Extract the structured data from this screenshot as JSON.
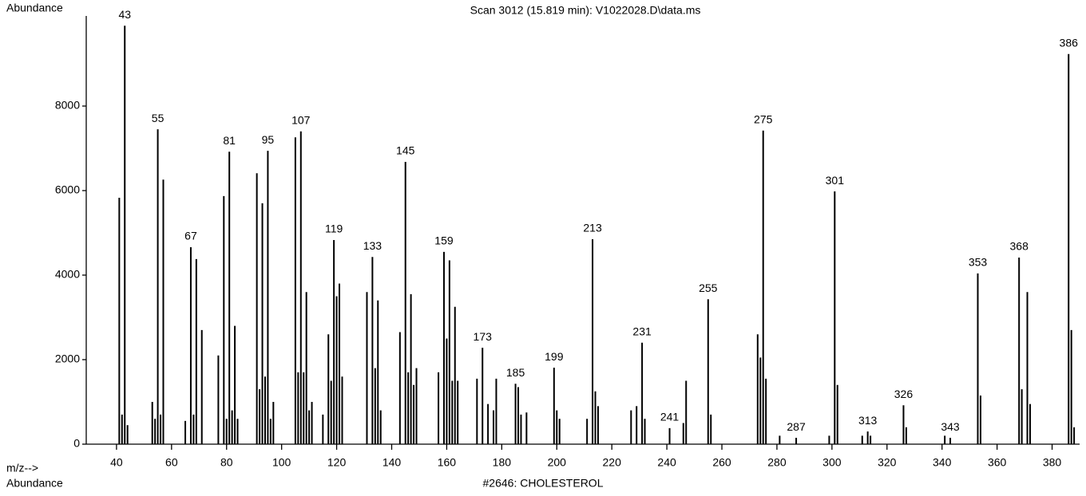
{
  "chart_data": {
    "type": "bar",
    "title": "Scan 3012 (15.819 min): V1022028.D\\data.ms",
    "y_label": "Abundance",
    "x_label": "m/z-->",
    "footer_label": "Abundance",
    "subtitle": "#2646: CHOLESTEROL",
    "color": "#000000",
    "xlim": [
      29,
      390
    ],
    "ylim": [
      0,
      10000
    ],
    "xticks": [
      40,
      60,
      80,
      100,
      120,
      140,
      160,
      180,
      200,
      220,
      240,
      260,
      280,
      300,
      320,
      340,
      360,
      380
    ],
    "yticks": [
      0,
      2000,
      4000,
      6000,
      8000
    ],
    "x": [
      41,
      42,
      43,
      44,
      53,
      54,
      55,
      56,
      57,
      65,
      67,
      68,
      69,
      71,
      77,
      79,
      80,
      81,
      82,
      83,
      84,
      91,
      92,
      93,
      94,
      95,
      96,
      97,
      105,
      106,
      107,
      108,
      109,
      110,
      111,
      115,
      117,
      118,
      119,
      120,
      121,
      122,
      131,
      133,
      134,
      135,
      136,
      143,
      145,
      146,
      147,
      148,
      149,
      157,
      159,
      160,
      161,
      162,
      163,
      164,
      171,
      173,
      175,
      177,
      178,
      185,
      186,
      187,
      189,
      199,
      200,
      201,
      211,
      213,
      214,
      215,
      227,
      229,
      231,
      232,
      241,
      246,
      247,
      255,
      256,
      273,
      274,
      275,
      276,
      281,
      287,
      299,
      301,
      302,
      311,
      313,
      314,
      326,
      327,
      341,
      343,
      353,
      354,
      368,
      369,
      371,
      372,
      386,
      387,
      388
    ],
    "values": [
      5830,
      700,
      9900,
      450,
      1000,
      600,
      7450,
      700,
      6260,
      550,
      4660,
      700,
      4380,
      2700,
      2100,
      5870,
      600,
      6920,
      800,
      2800,
      600,
      6410,
      1300,
      5700,
      1600,
      6940,
      600,
      1000,
      7260,
      1700,
      7400,
      1700,
      3600,
      800,
      1000,
      700,
      2600,
      1500,
      4830,
      3500,
      3800,
      1600,
      3600,
      4430,
      1800,
      3400,
      800,
      2650,
      6680,
      1700,
      3550,
      1400,
      1800,
      1700,
      4550,
      2500,
      4350,
      1500,
      3250,
      1500,
      1550,
      2280,
      950,
      800,
      1550,
      1430,
      1350,
      700,
      750,
      1810,
      800,
      600,
      600,
      4850,
      1250,
      900,
      800,
      900,
      2400,
      600,
      380,
      500,
      1500,
      3430,
      700,
      2600,
      2050,
      7420,
      1550,
      200,
      150,
      200,
      5980,
      1400,
      200,
      300,
      200,
      920,
      400,
      200,
      150,
      4040,
      1150,
      4415,
      1300,
      3600,
      950,
      9230,
      2700,
      400
    ],
    "x_labels": [
      null,
      null,
      "43",
      null,
      null,
      null,
      "55",
      null,
      null,
      null,
      "67",
      null,
      null,
      null,
      null,
      null,
      null,
      "81",
      null,
      null,
      null,
      null,
      null,
      null,
      null,
      "95",
      null,
      null,
      null,
      null,
      "107",
      null,
      null,
      null,
      null,
      null,
      null,
      null,
      "119",
      null,
      null,
      null,
      null,
      "133",
      null,
      null,
      null,
      null,
      "145",
      null,
      null,
      null,
      null,
      null,
      "159",
      null,
      null,
      null,
      null,
      null,
      null,
      "173",
      null,
      null,
      null,
      "185",
      null,
      null,
      null,
      "199",
      null,
      null,
      null,
      "213",
      null,
      null,
      null,
      null,
      "231",
      null,
      "241",
      null,
      null,
      "255",
      null,
      null,
      null,
      "275",
      null,
      null,
      "287",
      null,
      "301",
      null,
      null,
      "313",
      null,
      "326",
      null,
      null,
      "343",
      "353",
      null,
      "368",
      null,
      null,
      null,
      "386",
      null,
      null
    ]
  }
}
